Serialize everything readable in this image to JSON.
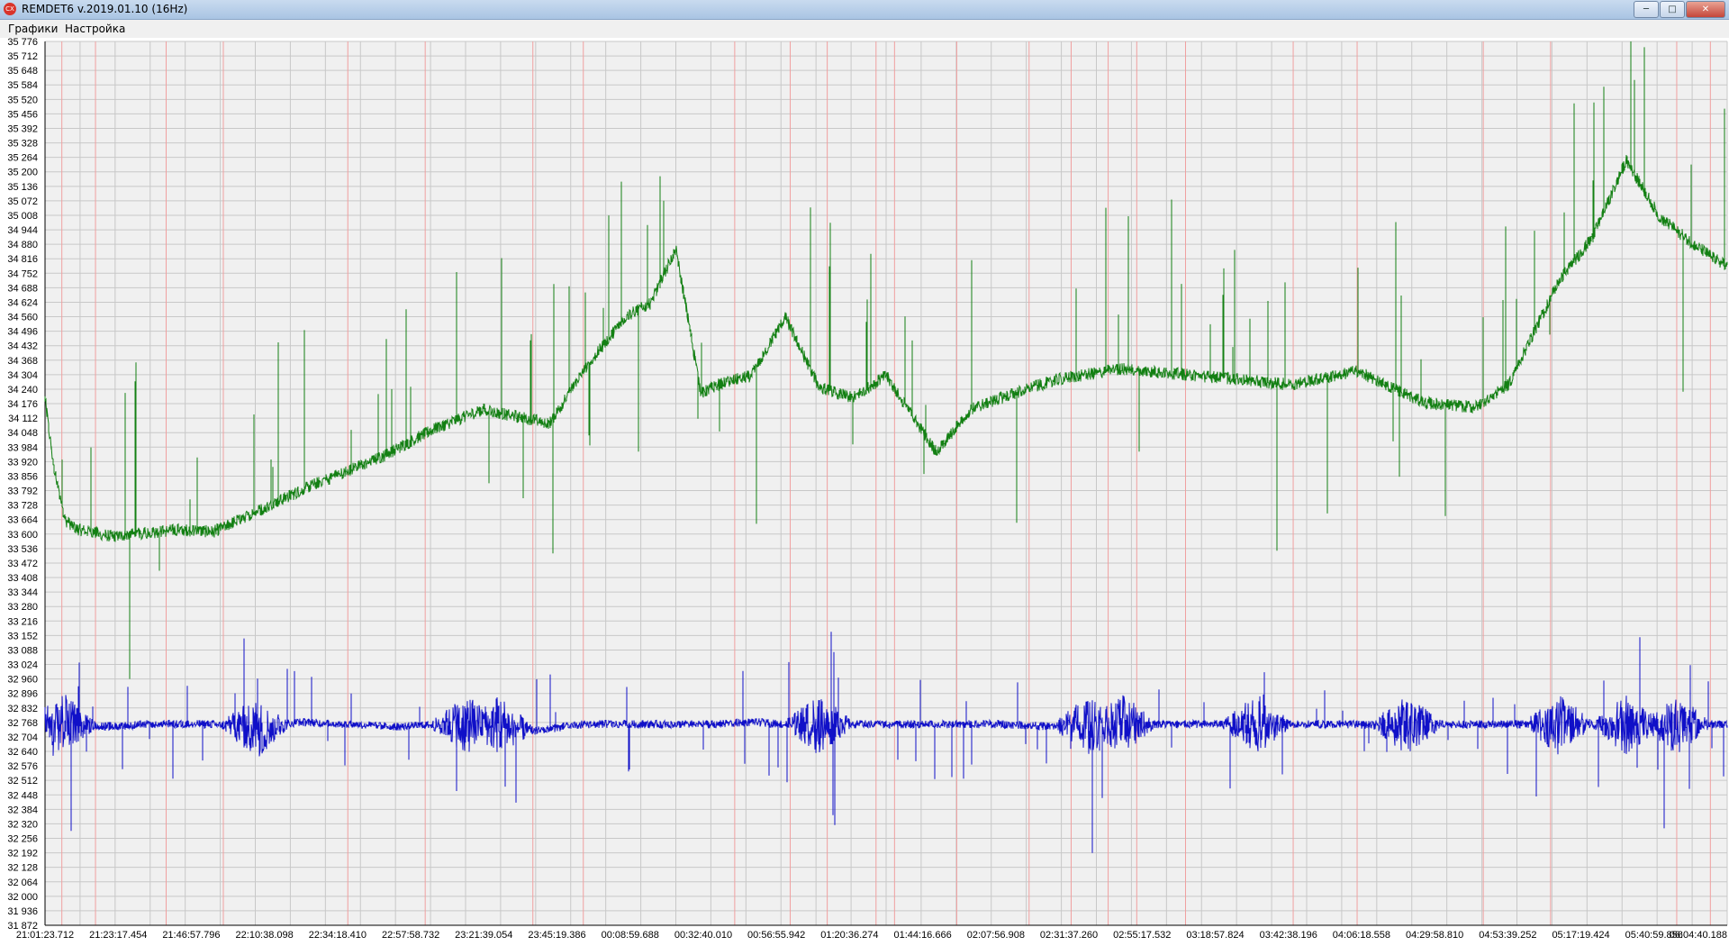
{
  "window": {
    "title": "REMDET6 v.2019.01.10 (16Hz)",
    "app_icon": "app-logo-icon",
    "controls": {
      "minimize": "─",
      "maximize": "□",
      "close": "✕"
    }
  },
  "menu": {
    "items": [
      "Графики",
      "Настройка"
    ]
  },
  "colors": {
    "plot_background": "#f0f0f0",
    "series_green": "#138013",
    "series_blue": "#1010c8",
    "grid": "#c8c8c8",
    "grid_red": "#f0a0a0",
    "axis": "#000000"
  },
  "chart_data": {
    "type": "line",
    "title": "",
    "xlabel": "",
    "ylabel": "",
    "grid": true,
    "ylim": [
      31872,
      35776
    ],
    "y_ticks": [
      "35 776",
      "35 712",
      "35 648",
      "35 584",
      "35 520",
      "35 456",
      "35 392",
      "35 328",
      "35 264",
      "35 200",
      "35 136",
      "35 072",
      "35 008",
      "34 944",
      "34 880",
      "34 816",
      "34 752",
      "34 688",
      "34 624",
      "34 560",
      "34 496",
      "34 432",
      "34 368",
      "34 304",
      "34 240",
      "34 176",
      "34 112",
      "34 048",
      "33 984",
      "33 920",
      "33 856",
      "33 792",
      "33 728",
      "33 664",
      "33 600",
      "33 536",
      "33 472",
      "33 408",
      "33 344",
      "33 280",
      "33 216",
      "33 152",
      "33 088",
      "33 024",
      "32 960",
      "32 896",
      "32 832",
      "32 768",
      "32 704",
      "32 640",
      "32 576",
      "32 512",
      "32 448",
      "32 384",
      "32 320",
      "32 256",
      "32 192",
      "32 128",
      "32 064",
      "32 000",
      "31 936",
      "31 872"
    ],
    "x_ticks": [
      "21:01:23.712",
      "21:23:17.454",
      "21:46:57.796",
      "22:10:38.098",
      "22:34:18.410",
      "22:57:58.732",
      "23:21:39.054",
      "23:45:19.386",
      "00:08:59.688",
      "00:32:40.010",
      "00:56:55.942",
      "01:20:36.274",
      "01:44:16.666",
      "02:07:56.908",
      "02:31:37.260",
      "02:55:17.532",
      "03:18:57.824",
      "03:42:38.196",
      "04:06:18.558",
      "04:29:58.810",
      "04:53:39.252",
      "05:17:19.424",
      "05:40:59.856",
      "06:04:40.188"
    ],
    "series": [
      {
        "color": "#138013",
        "x": [
          0,
          0.005,
          0.012,
          0.02,
          0.04,
          0.08,
          0.1,
          0.12,
          0.16,
          0.2,
          0.23,
          0.26,
          0.28,
          0.3,
          0.32,
          0.345,
          0.36,
          0.375,
          0.39,
          0.4,
          0.42,
          0.44,
          0.46,
          0.48,
          0.5,
          0.53,
          0.55,
          0.56,
          0.6,
          0.64,
          0.7,
          0.74,
          0.78,
          0.8,
          0.82,
          0.85,
          0.87,
          0.9,
          0.92,
          0.94,
          0.96,
          0.98,
          1.0
        ],
        "values": [
          34200,
          33900,
          33660,
          33620,
          33590,
          33620,
          33610,
          33680,
          33820,
          33940,
          34060,
          34150,
          34120,
          34090,
          34320,
          34560,
          34620,
          34860,
          34220,
          34260,
          34300,
          34560,
          34250,
          34200,
          34300,
          33960,
          34150,
          34180,
          34280,
          34330,
          34290,
          34260,
          34320,
          34250,
          34180,
          34160,
          34260,
          34720,
          34910,
          35250,
          35000,
          34880,
          34780
        ]
      },
      {
        "color": "#1010c8",
        "x": [
          0,
          0.005,
          0.01,
          0.02,
          0.04,
          0.06,
          0.1,
          0.13,
          0.15,
          0.18,
          0.21,
          0.24,
          0.26,
          0.27,
          0.29,
          0.32,
          0.35,
          0.38,
          0.4,
          0.42,
          0.44,
          0.46,
          0.5,
          0.54,
          0.57,
          0.6,
          0.62,
          0.64,
          0.66,
          0.7,
          0.73,
          0.75,
          0.78,
          0.8,
          0.82,
          0.84,
          0.86,
          0.88,
          0.9,
          0.93,
          0.95,
          0.97,
          1.0
        ],
        "values": [
          32790,
          32720,
          32770,
          32760,
          32750,
          32760,
          32760,
          32740,
          32770,
          32760,
          32750,
          32760,
          32760,
          32760,
          32730,
          32760,
          32760,
          32760,
          32760,
          32770,
          32760,
          32760,
          32760,
          32760,
          32760,
          32750,
          32760,
          32760,
          32760,
          32760,
          32760,
          32760,
          32760,
          32750,
          32760,
          32760,
          32760,
          32760,
          32760,
          32760,
          32760,
          32760,
          32760
        ]
      }
    ],
    "markers": {
      "red_lines_x": [
        0.01,
        0.03,
        0.072,
        0.106,
        0.18,
        0.226,
        0.29,
        0.32,
        0.41,
        0.443,
        0.465,
        0.494,
        0.505,
        0.542,
        0.585,
        0.61,
        0.632,
        0.649,
        0.678,
        0.742,
        0.78,
        0.855,
        0.895,
        0.97,
        0.99
      ]
    }
  }
}
